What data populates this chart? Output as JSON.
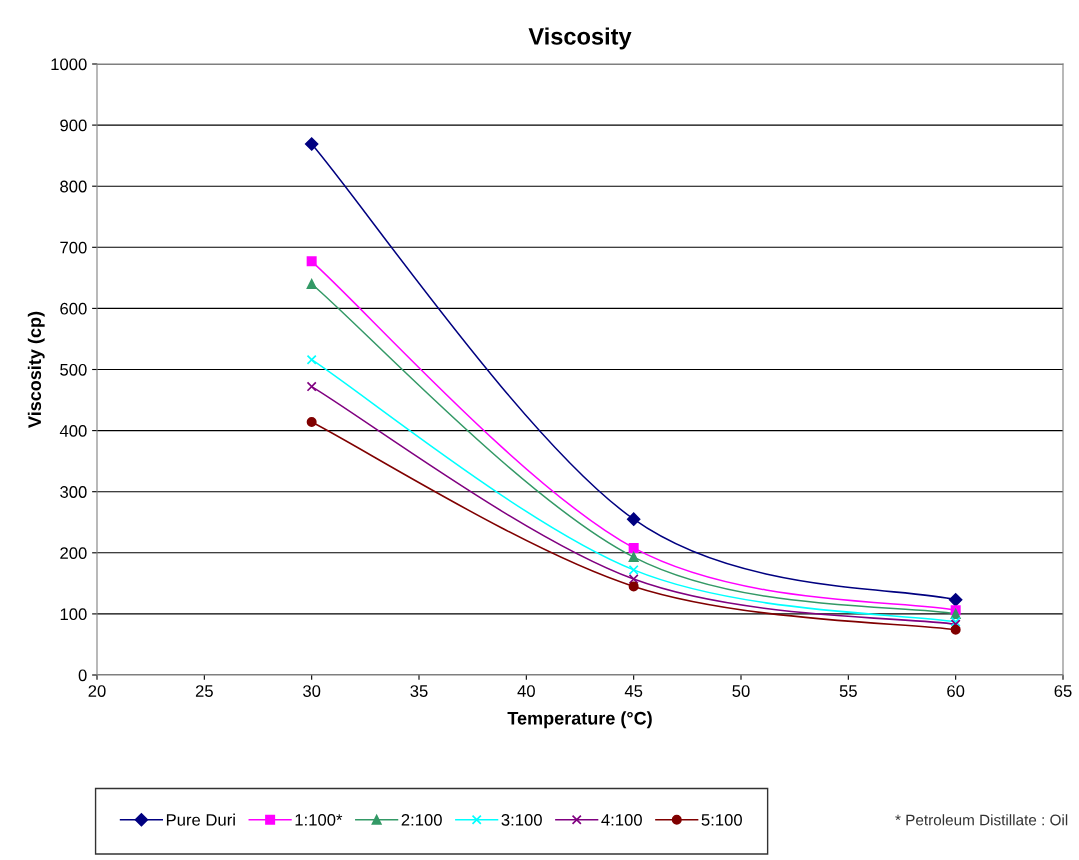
{
  "chart_data": {
    "type": "line",
    "title": "Viscosity",
    "xlabel": "Temperature (°C)",
    "ylabel": "Viscosity (cp)",
    "x": [
      30,
      45,
      60
    ],
    "series": [
      {
        "name": "Pure Duri",
        "color": "#000080",
        "marker": "diamond",
        "values": [
          869,
          255,
          123
        ]
      },
      {
        "name": "1:100*",
        "color": "#ff00ff",
        "marker": "square",
        "values": [
          677,
          208,
          106
        ]
      },
      {
        "name": "2:100",
        "color": "#339966",
        "marker": "triangle",
        "values": [
          640,
          193,
          100
        ]
      },
      {
        "name": "3:100",
        "color": "#00ffff",
        "marker": "cross",
        "values": [
          516,
          172,
          87
        ]
      },
      {
        "name": "4:100",
        "color": "#800080",
        "marker": "cross",
        "values": [
          472,
          157,
          83
        ]
      },
      {
        "name": "5:100",
        "color": "#800000",
        "marker": "circle",
        "values": [
          414,
          145,
          74
        ]
      }
    ],
    "xlim": [
      20,
      65
    ],
    "xticks": [
      20,
      25,
      30,
      35,
      40,
      45,
      50,
      55,
      60,
      65
    ],
    "ylim": [
      0,
      1000
    ],
    "yticks": [
      0,
      100,
      200,
      300,
      400,
      500,
      600,
      700,
      800,
      900,
      1000
    ],
    "grid": "y",
    "legend": "bottom",
    "line_style": "solid",
    "annotations": [
      "* Petroleum Distillate : Oil"
    ]
  }
}
